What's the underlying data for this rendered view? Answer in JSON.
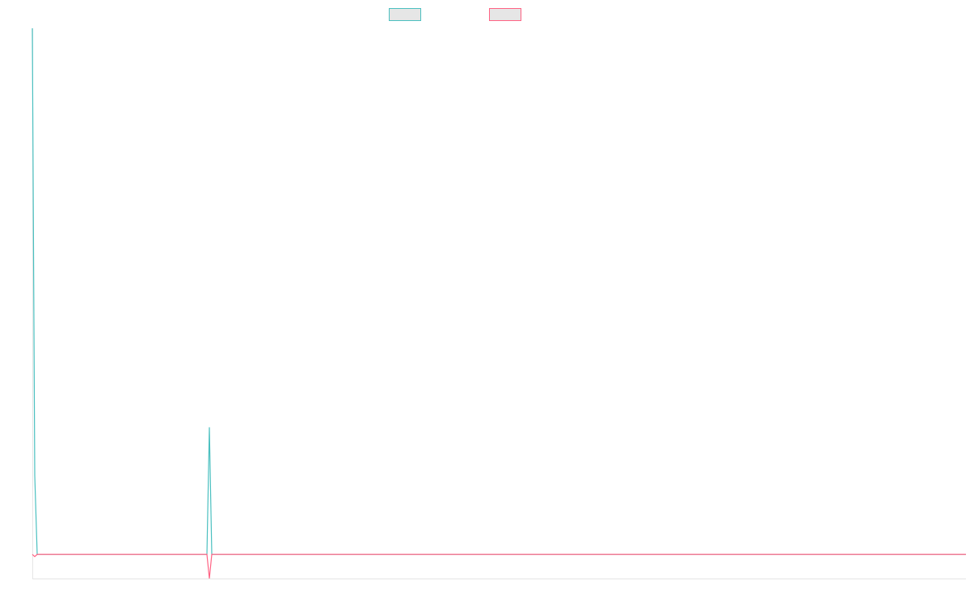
{
  "chart_data": {
    "type": "line",
    "x": [
      0,
      1,
      2,
      72,
      73,
      74,
      385
    ],
    "series": [
      {
        "color": "#4bc0c0",
        "values": [
          240,
          36,
          0,
          0,
          58,
          0,
          0
        ]
      },
      {
        "color": "#ff6384",
        "values": [
          0,
          -1,
          0,
          0,
          -11,
          0,
          0
        ]
      }
    ],
    "xlim": [
      0,
      385
    ],
    "ylim": [
      -11,
      240
    ]
  }
}
